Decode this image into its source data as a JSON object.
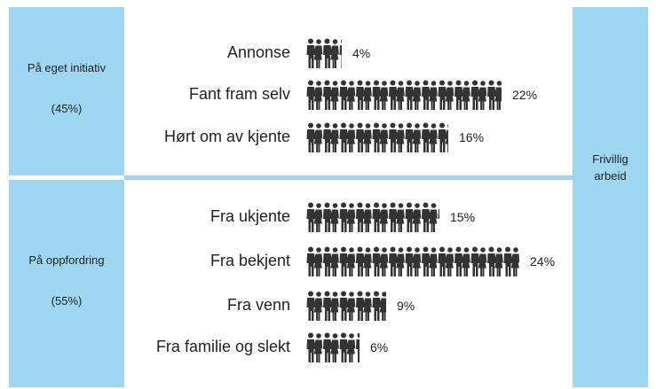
{
  "chart_data": {
    "type": "pictogram",
    "color": "#333333",
    "panel_color": "#9fd6f2",
    "side_label": "Frivillig arbeid",
    "groups": [
      {
        "label": "På eget initiativ",
        "value": 45,
        "value_label": "(45%)",
        "categories": [
          "Annonse",
          "Fant fram selv",
          "Hørt om av kjente"
        ],
        "values": [
          4,
          22,
          16
        ],
        "value_labels": [
          "4%",
          "22%",
          "16%"
        ]
      },
      {
        "label": "På oppfordring",
        "value": 55,
        "value_label": "(55%)",
        "categories": [
          "Fra ukjente",
          "Fra bekjent",
          "Fra venn",
          "Fra familie og slekt"
        ],
        "values": [
          15,
          24,
          9,
          6
        ],
        "value_labels": [
          "15%",
          "24%",
          "9%",
          "6%"
        ]
      }
    ]
  }
}
